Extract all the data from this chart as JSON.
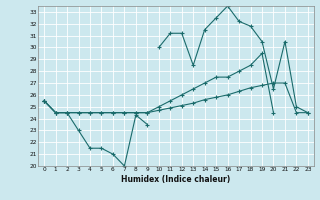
{
  "xlabel": "Humidex (Indice chaleur)",
  "bg_color": "#cce8ee",
  "line_color": "#1a6b6b",
  "grid_color": "#ffffff",
  "ylim": [
    20,
    33.5
  ],
  "xlim": [
    -0.5,
    23.5
  ],
  "hours": [
    0,
    1,
    2,
    3,
    4,
    5,
    6,
    7,
    8,
    9,
    10,
    11,
    12,
    13,
    14,
    15,
    16,
    17,
    18,
    19,
    20,
    21,
    22,
    23
  ],
  "top_line": [
    25.5,
    null,
    null,
    null,
    null,
    null,
    null,
    null,
    null,
    null,
    30.0,
    31.2,
    31.2,
    28.5,
    31.5,
    32.5,
    33.5,
    32.2,
    31.8,
    30.5,
    26.5,
    30.5,
    25.0,
    24.5
  ],
  "bot_line": [
    25.5,
    24.5,
    24.5,
    23.0,
    21.5,
    21.5,
    21.0,
    20.0,
    24.3,
    23.5,
    null,
    null,
    null,
    null,
    null,
    null,
    null,
    null,
    null,
    null,
    null,
    null,
    null,
    null
  ],
  "trend_upper": [
    25.5,
    24.5,
    24.5,
    24.5,
    24.5,
    24.5,
    24.5,
    24.5,
    24.5,
    24.5,
    25.0,
    25.5,
    26.0,
    26.5,
    27.0,
    27.5,
    27.5,
    28.0,
    28.5,
    29.5,
    24.5,
    null,
    null,
    null
  ],
  "trend_lower": [
    25.5,
    24.5,
    24.5,
    24.5,
    24.5,
    24.5,
    24.5,
    24.5,
    24.5,
    24.5,
    24.7,
    24.9,
    25.1,
    25.3,
    25.6,
    25.8,
    26.0,
    26.3,
    26.6,
    26.8,
    27.0,
    27.0,
    24.5,
    24.5
  ]
}
